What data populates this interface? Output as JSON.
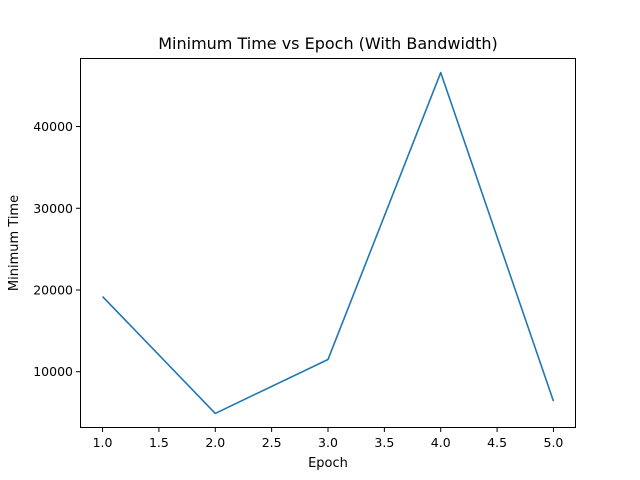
{
  "chart_data": {
    "type": "line",
    "title": "Minimum Time vs Epoch (With Bandwidth)",
    "xlabel": "Epoch",
    "ylabel": "Minimum Time",
    "x": [
      1.0,
      2.0,
      3.0,
      4.0,
      5.0
    ],
    "series": [
      {
        "values": [
          19200,
          4900,
          11500,
          46600,
          6400
        ],
        "color": "#1f77b4"
      }
    ],
    "xlim": [
      0.8,
      5.2
    ],
    "ylim": [
      3115,
      48385
    ],
    "xticks": [
      1.0,
      1.5,
      2.0,
      2.5,
      3.0,
      3.5,
      4.0,
      4.5,
      5.0
    ],
    "xtick_labels": [
      "1.0",
      "1.5",
      "2.0",
      "2.5",
      "3.0",
      "3.5",
      "4.0",
      "4.5",
      "5.0"
    ],
    "yticks": [
      10000,
      20000,
      30000,
      40000
    ],
    "ytick_labels": [
      "10000",
      "20000",
      "30000",
      "40000"
    ],
    "grid": false,
    "legend": false
  }
}
